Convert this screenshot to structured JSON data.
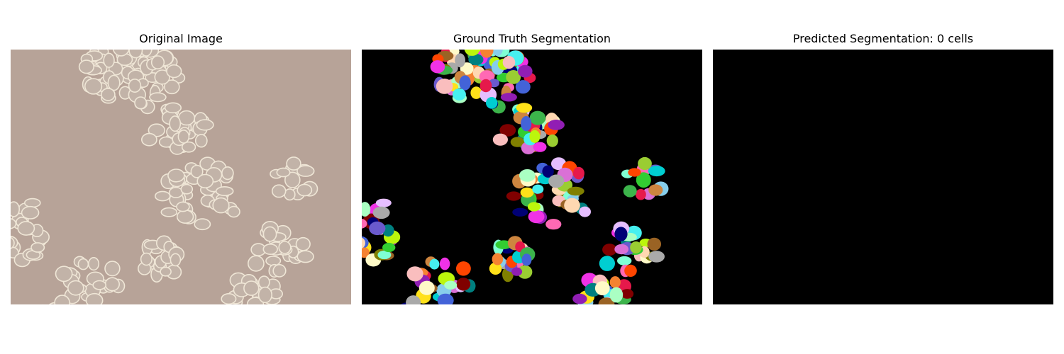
{
  "panels": [
    {
      "title": "Original Image",
      "image": "microscopy-cell-clusters"
    },
    {
      "title": "Ground Truth Segmentation",
      "image": "colored-cell-masks"
    },
    {
      "title": "Predicted Segmentation: 0 cells",
      "image": "empty-black-mask"
    }
  ],
  "colors": {
    "background_original": "#b7a398",
    "cell_outline": "#efe6d6",
    "mask_background": "#000000"
  }
}
